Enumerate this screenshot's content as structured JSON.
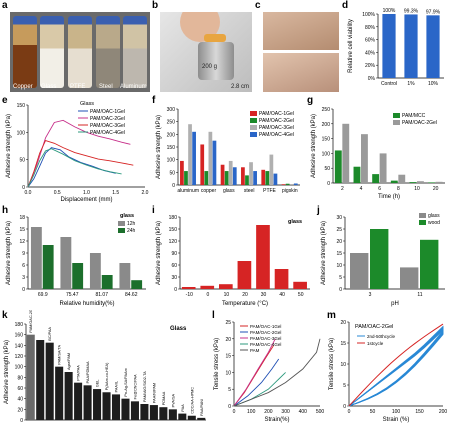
{
  "labels": {
    "a": "a",
    "b": "b",
    "c": "c",
    "d": "d",
    "e": "e",
    "f": "f",
    "g": "g",
    "h": "h",
    "i": "i",
    "j": "j",
    "k": "k",
    "l": "l",
    "m": "m"
  },
  "panel_a": {
    "vials": [
      "Copper",
      "Glass",
      "PTFE",
      "Steel",
      "Aluminum"
    ]
  },
  "panel_b": {
    "weight": "200 g",
    "scale": "2.8 cm"
  },
  "panel_d": {
    "type": "bar",
    "categories": [
      "Control",
      "1%",
      "10%"
    ],
    "values": [
      100,
      99.3,
      97.9
    ],
    "value_labels": [
      "100%",
      "99.3%",
      "97.9%"
    ],
    "ylabel": "Relative cell viability",
    "ylim": [
      0,
      100
    ],
    "yticks": [
      0,
      20,
      40,
      60,
      80,
      100
    ],
    "tick_suffix": "%",
    "color": "#2a66c8"
  },
  "panel_e": {
    "type": "line",
    "ylabel": "Adhesive strength (kPa)",
    "xlabel": "Displacement (mm)",
    "legend_title": "Glass",
    "xlim": [
      0,
      2
    ],
    "ylim": [
      0,
      150
    ],
    "xticks": [
      0.0,
      0.5,
      1.0,
      1.5,
      2.0
    ],
    "yticks": [
      0,
      50,
      100,
      150
    ],
    "series": [
      {
        "name": "PAM/OAC-1Gel",
        "color": "#1f4fb4",
        "x": [
          0,
          0.1,
          0.2,
          0.3,
          0.4,
          0.55,
          0.7,
          0.9,
          1.1,
          1.3,
          1.5
        ],
        "y": [
          0,
          15,
          38,
          62,
          72,
          68,
          55,
          45,
          38,
          30,
          25
        ]
      },
      {
        "name": "PAM/OAC-2Gel",
        "color": "#c7308a",
        "x": [
          0,
          0.15,
          0.3,
          0.45,
          0.6,
          0.8,
          1.0,
          1.2,
          1.4,
          1.6,
          1.75
        ],
        "y": [
          0,
          40,
          90,
          118,
          122,
          110,
          100,
          93,
          88,
          82,
          78
        ]
      },
      {
        "name": "PAM/OAC-3Gel",
        "color": "#d62424",
        "x": [
          0,
          0.1,
          0.2,
          0.3,
          0.45,
          0.6,
          0.8,
          1.0,
          1.2,
          1.4,
          1.6,
          1.8
        ],
        "y": [
          0,
          28,
          62,
          85,
          80,
          72,
          63,
          57,
          51,
          48,
          44,
          40
        ]
      },
      {
        "name": "PAM/OAC-4Gel",
        "color": "#2d9a7e",
        "x": [
          0,
          0.1,
          0.2,
          0.3,
          0.4,
          0.6,
          0.8,
          1.0,
          1.2,
          1.4,
          1.6
        ],
        "y": [
          0,
          22,
          48,
          66,
          70,
          60,
          48,
          40,
          33,
          28,
          24
        ]
      }
    ]
  },
  "panel_f": {
    "type": "bar",
    "ylabel": "Adhesive strength (kPa)",
    "categories": [
      "aluminum",
      "copper",
      "glass",
      "steel",
      "PTFE",
      "pigskin"
    ],
    "ylim": [
      0,
      300
    ],
    "yticks": [
      0,
      50,
      100,
      150,
      200,
      250,
      300
    ],
    "series": [
      {
        "name": "PAM/OAC-1Gel",
        "color": "#d62424",
        "values": [
          95,
          160,
          80,
          70,
          60,
          3
        ]
      },
      {
        "name": "PAM/OAC-2Gel",
        "color": "#1c8a2a",
        "values": [
          55,
          55,
          55,
          38,
          55,
          5
        ]
      },
      {
        "name": "PAM/OAC-3Gel",
        "color": "#b0b0b0",
        "values": [
          240,
          210,
          95,
          90,
          120,
          4
        ]
      },
      {
        "name": "PAM/OAC-4Gel",
        "color": "#2a66c8",
        "values": [
          210,
          175,
          70,
          55,
          45,
          6
        ]
      }
    ]
  },
  "panel_g": {
    "type": "bar",
    "ylabel": "Adhesive strength (kPa)",
    "xlabel": "Time (h)",
    "categories": [
      "2",
      "4",
      "6",
      "8",
      "10",
      "20"
    ],
    "ylim": [
      0,
      250
    ],
    "yticks": [
      0,
      50,
      100,
      150,
      200,
      250
    ],
    "series": [
      {
        "name": "PAM/MCC",
        "color": "#1c8a2a",
        "values": [
          110,
          55,
          30,
          8,
          3,
          2
        ]
      },
      {
        "name": "PAM/OAC-2Gel",
        "color": "#9a9a9a",
        "values": [
          200,
          165,
          100,
          28,
          6,
          4
        ]
      }
    ]
  },
  "panel_h": {
    "type": "bar",
    "ylabel": "Adhesive strength (kPa)",
    "xlabel": "Relative humidity(%)",
    "legend_title": "glass",
    "categories": [
      "69.9",
      "75.47",
      "81.07",
      "84.62"
    ],
    "ylim": [
      0,
      18
    ],
    "yticks": [
      0,
      3,
      6,
      9,
      12,
      15,
      18
    ],
    "series": [
      {
        "name": "12h",
        "color": "#8a8a8a",
        "values": [
          15.5,
          13.0,
          9.0,
          6.5
        ]
      },
      {
        "name": "24h",
        "color": "#1c6f2c",
        "values": [
          11.0,
          6.5,
          3.5,
          2.2
        ]
      }
    ]
  },
  "panel_i": {
    "type": "bar",
    "ylabel": "Adhesive strength (kPa)",
    "xlabel": "Temperature (°C)",
    "legend_title": "glass",
    "categories": [
      "-10",
      "0",
      "10",
      "20",
      "30",
      "40",
      "50"
    ],
    "ylim": [
      0,
      180
    ],
    "yticks": [
      0,
      30,
      60,
      90,
      120,
      150,
      180
    ],
    "values": [
      5,
      8,
      12,
      70,
      160,
      50,
      18
    ],
    "color": "#d62424"
  },
  "panel_j": {
    "type": "bar",
    "ylabel": "Adhesive strength (kPa)",
    "xlabel": "pH",
    "categories": [
      "3",
      "11"
    ],
    "ylim": [
      0,
      30
    ],
    "yticks": [
      0,
      5,
      10,
      15,
      20,
      25,
      30
    ],
    "series": [
      {
        "name": "glass",
        "color": "#8a8a8a",
        "values": [
          15,
          9
        ]
      },
      {
        "name": "wood",
        "color": "#1c8a2a",
        "values": [
          25,
          20.5
        ]
      }
    ]
  },
  "panel_k": {
    "type": "bar",
    "ylabel": "Adhesive strength (kPa)",
    "legend_title": "Glass",
    "ylim": [
      0,
      180
    ],
    "yticks": [
      0,
      20,
      40,
      60,
      80,
      100,
      120,
      140,
      160,
      180
    ],
    "categories": [
      "PAM/OAC-2Gel",
      "PAM/CMC/Fe",
      "BC/PAA",
      "PAM/SA/TA",
      "Agar/PAM",
      "PTA/PAA",
      "PAA/PDMAA",
      "GEL",
      "P(AAm-co-HEA)",
      "PAA/IL",
      "Pn-Ag-SA/PAAm",
      "Fe@CNC/PAA",
      "PAM/AlG/SiO2-TA",
      "PAA/NIPAM",
      "PDMAA",
      "PVA/SA",
      "PAA",
      "CDC/AA-HPMC",
      "PAA/PANI"
    ],
    "bar_labels": [
      "PAM/OAC-2Gel",
      "",
      "BC/PAA",
      "PAM/SA/TA",
      "Agar/PAM",
      "PTA/PAA",
      "PAA/PDMAA",
      "GEL",
      "P(AAm-co-HEA)",
      "PAA/IL",
      "Pn-Ag-SA/PAAm",
      "Fe@CNC/PAA",
      "PAM/AlG/SiO2-TA",
      "PAA/NIPAM",
      "PDMAA",
      "PVA/SA",
      "PAA",
      "CDC/AA-HPMC",
      "PAA/PANI"
    ],
    "values": [
      160,
      150,
      145,
      100,
      90,
      70,
      65,
      58,
      52,
      48,
      40,
      35,
      30,
      28,
      24,
      20,
      12,
      8,
      4
    ]
  },
  "panel_l": {
    "type": "line",
    "ylabel": "Tensile stress (kPa)",
    "xlabel": "Strain(%)",
    "xlim": [
      0,
      500
    ],
    "ylim": [
      0,
      25
    ],
    "xticks": [
      0,
      100,
      200,
      300,
      400,
      500
    ],
    "yticks": [
      0,
      5,
      10,
      15,
      20,
      25
    ],
    "series": [
      {
        "name": "PAM/OAC-1Gel",
        "color": "#d62424",
        "x": [
          0,
          60,
          120,
          180,
          230
        ],
        "y": [
          0,
          4,
          9,
          14,
          18
        ]
      },
      {
        "name": "PAM/OAC-2Gel",
        "color": "#1f4fb4",
        "x": [
          0,
          80,
          160,
          220,
          260
        ],
        "y": [
          0,
          3,
          7,
          11,
          14
        ]
      },
      {
        "name": "PAM/OAC-3Gel",
        "color": "#c7308a",
        "x": [
          0,
          70,
          140,
          200,
          240
        ],
        "y": [
          0,
          5,
          11,
          16,
          20
        ]
      },
      {
        "name": "PAM/OAC-4Gel",
        "color": "#2d9a7e",
        "x": [
          0,
          100,
          200,
          260,
          300
        ],
        "y": [
          0,
          2,
          5,
          8,
          10
        ]
      },
      {
        "name": "PAM",
        "color": "#555555",
        "x": [
          0,
          100,
          200,
          300,
          400,
          480,
          500
        ],
        "y": [
          0,
          2,
          4,
          7,
          11,
          16,
          20
        ]
      }
    ]
  },
  "panel_m": {
    "type": "line",
    "ylabel": "Tensile stress (kPa)",
    "xlabel": "Strain (%)",
    "title": "PAM/OAC-2Gel",
    "xlim": [
      0,
      200
    ],
    "ylim": [
      0,
      20
    ],
    "xticks": [
      0,
      50,
      100,
      150,
      200
    ],
    "yticks": [
      0,
      5,
      10,
      15,
      20
    ],
    "series": [
      {
        "name": "2nd-50thcycle",
        "color": "#2a8ad6"
      },
      {
        "name": "1stcycle",
        "color": "#d62424"
      }
    ],
    "legend_label_2": "2nd-50thcycle",
    "legend_label_1": "1stcycle"
  }
}
